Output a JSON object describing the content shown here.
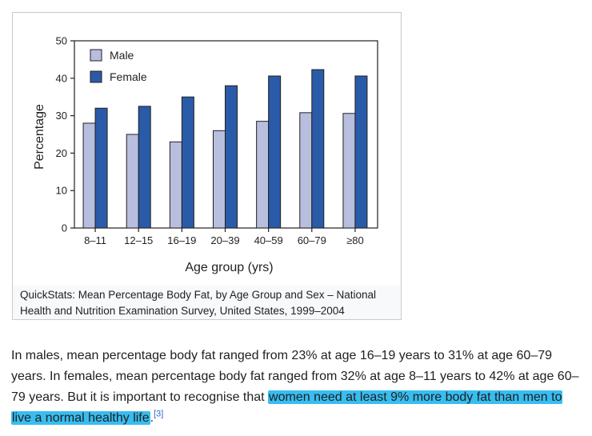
{
  "chart_data": {
    "type": "bar",
    "title": "",
    "xlabel": "Age group (yrs)",
    "ylabel": "Percentage",
    "ylim": [
      0,
      50
    ],
    "yticks": [
      0,
      10,
      20,
      30,
      40,
      50
    ],
    "grid": false,
    "legend_position": "top-left",
    "categories": [
      "8–11",
      "12–15",
      "16–19",
      "20–39",
      "40–59",
      "60–79",
      "≥80"
    ],
    "series": [
      {
        "name": "Male",
        "color": "#b7bede",
        "values": [
          28,
          25,
          23,
          26,
          28.5,
          30.8,
          30.6
        ]
      },
      {
        "name": "Female",
        "color": "#2a5ba8",
        "values": [
          32,
          32.5,
          35,
          38,
          40.6,
          42.3,
          40.6
        ]
      }
    ]
  },
  "figure": {
    "caption": "QuickStats: Mean Percentage Body Fat, by Age Group and Sex – National Health and Nutrition Examination Survey, United States, 1999–2004"
  },
  "article": {
    "text_plain": "In males, mean percentage body fat ranged from 23% at age 16–19 years to 31% at age 60–79 years. In females, mean percentage body fat ranged from 32% at age 8–11 years to 42% at age 60–79 years. But it is important to recognise that ",
    "text_highlight": "women need at least 9% more body fat than men to live a normal healthy life",
    "text_end": ".",
    "reference": "[3]",
    "highlight_color": "#38bdf0"
  }
}
